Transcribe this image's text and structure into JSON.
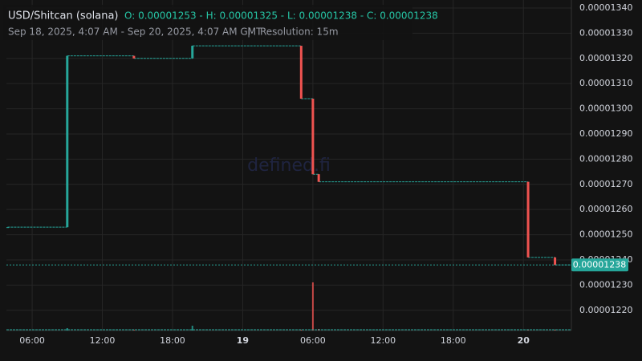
{
  "chart_data": {
    "type": "candlestick",
    "title": "USD/Shitcan (solana)",
    "ohlc_text": "O: 0.00001253 - H: 0.00001325 - L: 0.00001238 - C: 0.00001238",
    "subtitle": "Sep 18, 2025, 4:07 AM - Sep 20, 2025, 4:07 AM GMT",
    "resolution": "Resolution: 15m",
    "watermark": "defined.fi",
    "up_color": "#26a69a",
    "down_color": "#ef5350",
    "grid": true,
    "x": [
      3.9,
      9.0,
      14.7,
      19.7,
      29.0,
      30.0,
      30.5,
      48.4,
      50.7
    ],
    "open": [
      1.253e-05,
      1.253e-05,
      1.321e-05,
      1.32e-05,
      1.325e-05,
      1.304e-05,
      1.274e-05,
      1.271e-05,
      1.241e-05
    ],
    "high": [
      1.253e-05,
      1.321e-05,
      1.321e-05,
      1.325e-05,
      1.325e-05,
      1.304e-05,
      1.274e-05,
      1.271e-05,
      1.241e-05
    ],
    "low": [
      1.253e-05,
      1.253e-05,
      1.32e-05,
      1.32e-05,
      1.304e-05,
      1.274e-05,
      1.271e-05,
      1.241e-05,
      1.238e-05
    ],
    "close": [
      1.253e-05,
      1.321e-05,
      1.32e-05,
      1.325e-05,
      1.304e-05,
      1.274e-05,
      1.271e-05,
      1.241e-05,
      1.238e-05
    ],
    "volume": [
      0,
      3,
      1,
      6,
      1,
      60,
      2,
      1,
      1
    ],
    "volume_lim": [
      0,
      100
    ],
    "last_price": 1.238e-05,
    "xlim": [
      3.8,
      52.1
    ],
    "xticks": [
      {
        "value": 6,
        "label": "06:00"
      },
      {
        "value": 12,
        "label": "12:00"
      },
      {
        "value": 18,
        "label": "18:00"
      },
      {
        "value": 24,
        "label": "19"
      },
      {
        "value": 30,
        "label": "06:00"
      },
      {
        "value": 36,
        "label": "12:00"
      },
      {
        "value": 42,
        "label": "18:00"
      },
      {
        "value": 48,
        "label": "20"
      }
    ],
    "ylim": [
      1.21197e-05,
      1.34318e-05
    ],
    "yticks": [
      {
        "value": 1.22e-05,
        "label": "0.00001220"
      },
      {
        "value": 1.23e-05,
        "label": "0.00001230"
      },
      {
        "value": 1.24e-05,
        "label": "0.00001240"
      },
      {
        "value": 1.25e-05,
        "label": "0.00001250"
      },
      {
        "value": 1.26e-05,
        "label": "0.00001260"
      },
      {
        "value": 1.27e-05,
        "label": "0.00001270"
      },
      {
        "value": 1.28e-05,
        "label": "0.00001280"
      },
      {
        "value": 1.29e-05,
        "label": "0.00001290"
      },
      {
        "value": 1.3e-05,
        "label": "0.00001300"
      },
      {
        "value": 1.31e-05,
        "label": "0.00001310"
      },
      {
        "value": 1.32e-05,
        "label": "0.00001320"
      },
      {
        "value": 1.33e-05,
        "label": "0.00001330"
      },
      {
        "value": 1.34e-05,
        "label": "0.00001340"
      }
    ]
  }
}
